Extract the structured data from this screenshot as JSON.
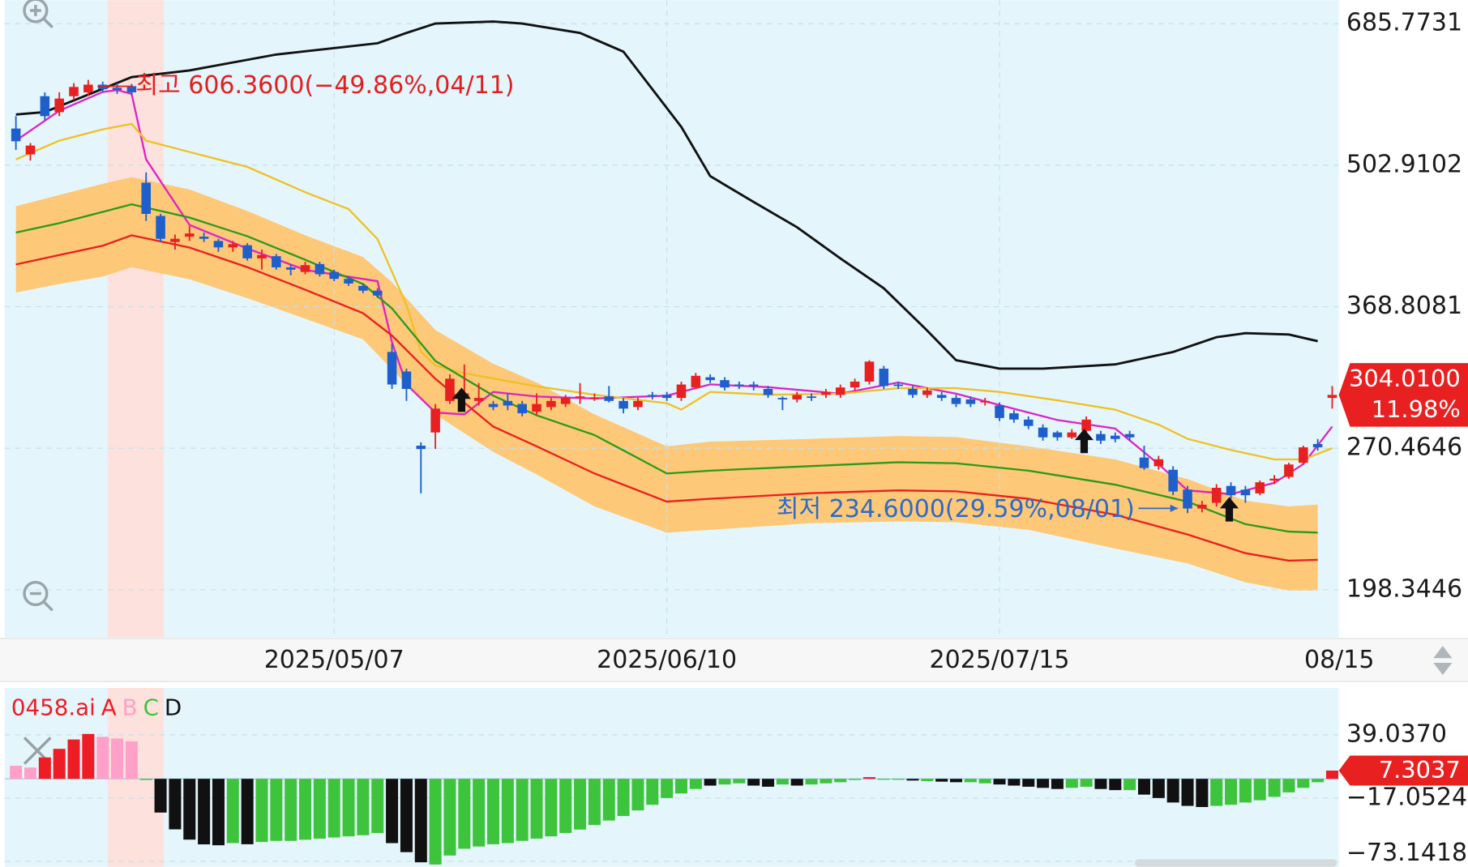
{
  "chart_data": [
    {
      "type": "candlestick",
      "log_scale": true,
      "grid": true,
      "up_color": "#e8201f",
      "down_color": "#1f5fcc",
      "categories": [
        null,
        null,
        null,
        null,
        null,
        null,
        null,
        null,
        null,
        null,
        null,
        null,
        null,
        null,
        null,
        null,
        null,
        null,
        null,
        null,
        null,
        null,
        "2025/05/07",
        null,
        null,
        null,
        null,
        null,
        null,
        null,
        null,
        null,
        null,
        null,
        null,
        null,
        null,
        null,
        null,
        null,
        null,
        null,
        null,
        null,
        null,
        "2025/06/10",
        null,
        null,
        null,
        null,
        null,
        null,
        null,
        null,
        null,
        null,
        null,
        null,
        null,
        null,
        null,
        null,
        null,
        null,
        null,
        null,
        null,
        null,
        "2025/07/15",
        null,
        null,
        null,
        null,
        null,
        null,
        null,
        null,
        null,
        null,
        null,
        null,
        null,
        null,
        null,
        null,
        null,
        null,
        null,
        null,
        null,
        null,
        "08/15"
      ],
      "open": [
        545,
        515,
        585,
        565,
        585,
        590,
        600,
        596,
        598,
        484,
        450,
        425,
        430,
        430,
        426,
        420,
        422,
        410,
        412,
        402,
        398,
        405,
        398,
        392,
        386,
        382,
        334,
        320,
        272,
        280,
        300,
        302,
        300,
        298,
        300,
        298,
        293,
        296,
        298,
        302,
        302,
        303,
        300,
        296,
        304,
        304,
        302,
        309,
        316,
        314,
        311,
        311,
        308,
        302,
        301,
        303,
        304,
        304,
        309,
        313,
        322,
        311,
        308,
        304,
        304,
        302,
        301,
        299,
        297,
        292,
        288,
        283,
        280,
        277,
        281,
        279,
        278,
        279,
        265,
        260,
        258,
        247,
        237,
        240,
        249,
        247,
        245,
        252,
        254,
        262,
        273,
        302
      ],
      "high": [
        560,
        528,
        590,
        590,
        602,
        606.36,
        604,
        602,
        601,
        495,
        452,
        432,
        440,
        434,
        428,
        426,
        424,
        418,
        414,
        405,
        407,
        407,
        400,
        394,
        388,
        384,
        340,
        322,
        274,
        298,
        318,
        325,
        312,
        300,
        305,
        300,
        305,
        302,
        304,
        312,
        305,
        310,
        302,
        302,
        306,
        306,
        313,
        319,
        318,
        316,
        313,
        313,
        310,
        303,
        306,
        305,
        308,
        311,
        315,
        328,
        324,
        313,
        310,
        309,
        306,
        304,
        303,
        302,
        299,
        294,
        290,
        285,
        281,
        282,
        290,
        281,
        280,
        281,
        272,
        266,
        260,
        249,
        241,
        250,
        251,
        249,
        252,
        255,
        262,
        272,
        276,
        310
      ],
      "low": [
        520,
        508,
        555,
        560,
        580,
        585,
        590,
        588,
        586,
        445,
        425,
        418,
        426,
        425,
        416,
        416,
        408,
        400,
        400,
        395,
        396,
        394,
        390,
        386,
        380,
        376,
        308,
        300,
        245,
        270,
        298,
        300,
        297,
        294,
        294,
        290,
        291,
        294,
        296,
        298,
        300,
        299,
        292,
        294,
        301,
        300,
        300,
        308,
        312,
        307,
        308,
        307,
        302,
        294,
        299,
        300,
        302,
        302,
        307,
        311,
        308,
        308,
        302,
        302,
        300,
        296,
        296,
        297,
        287,
        286,
        282,
        275,
        275,
        276,
        279,
        273,
        274,
        275,
        258,
        258,
        244,
        234.6,
        235,
        238,
        242,
        240,
        244,
        250,
        253,
        261,
        269,
        295
      ],
      "close": [
        530,
        525,
        560,
        582,
        597,
        600,
        594,
        593,
        590,
        452,
        428,
        428,
        433,
        428,
        420,
        423,
        410,
        413,
        402,
        400,
        404,
        396,
        392,
        388,
        382,
        378,
        311,
        308,
        270,
        295,
        315,
        305,
        302,
        296,
        297,
        292,
        298,
        300,
        302,
        303,
        302.4,
        300,
        295,
        300,
        303,
        302,
        311,
        317,
        314,
        309,
        310,
        310,
        304,
        301,
        304,
        302,
        306,
        309,
        313,
        327,
        310,
        310,
        304,
        307,
        302,
        298,
        298,
        300,
        289,
        288,
        284,
        277,
        277,
        280,
        288,
        275,
        276,
        277,
        259,
        264,
        246,
        237,
        239,
        248,
        244,
        244,
        251,
        253,
        261,
        271,
        271,
        304.01
      ],
      "lines": [
        {
          "color": "#111111",
          "x": [
            0,
            2,
            8,
            12,
            18,
            25,
            27,
            29,
            33,
            35,
            39,
            42,
            44,
            46,
            48,
            51,
            54,
            57,
            60,
            63,
            65,
            68,
            71,
            76,
            80,
            83,
            85,
            88,
            90
          ],
          "values": [
            562,
            565,
            610,
            619,
            641,
            657,
            672,
            686,
            689,
            686,
            672,
            645,
            594,
            547,
            491,
            464,
            439,
            410,
            384,
            350,
            328,
            322,
            322,
            325,
            334,
            345,
            348,
            347,
            342
          ]
        },
        {
          "color": "#e022c4",
          "x": [
            0,
            3,
            6,
            7,
            8,
            9,
            12,
            16,
            20,
            25,
            26,
            27,
            29,
            31,
            33,
            36,
            40,
            45,
            48,
            52,
            57,
            61,
            65,
            68,
            72,
            76,
            79,
            81,
            84,
            87,
            89,
            91
          ],
          "values": [
            530.7,
            566.7,
            590.5,
            592.9,
            588,
            509.4,
            441.2,
            419,
            399.8,
            390,
            341.2,
            311.1,
            292.5,
            291.3,
            306,
            302.9,
            301.6,
            303.5,
            311.1,
            309.2,
            304.8,
            312.4,
            304.8,
            297.3,
            287.7,
            282.4,
            261.2,
            246.6,
            244.6,
            250.7,
            261.2,
            283.6
          ]
        },
        {
          "color": "#f0c024",
          "x": [
            0,
            3,
            6,
            8,
            9,
            12,
            16,
            20,
            23,
            25,
            26,
            27,
            28,
            29,
            31,
            36,
            40,
            45,
            46,
            48,
            52,
            57,
            61,
            65,
            68,
            72,
            76,
            79,
            81,
            84,
            87,
            89,
            91
          ],
          "values": [
            509.4,
            530.7,
            544,
            550.6,
            530.7,
            517.7,
            501,
            474,
            456.8,
            427.7,
            398.1,
            370.4,
            334.3,
            324.2,
            318.8,
            309.8,
            304.1,
            298.5,
            294.3,
            306,
            304.1,
            304.8,
            308.5,
            308.5,
            306,
            300.4,
            294.3,
            284.8,
            276.1,
            269.4,
            263.9,
            263.9,
            270.5
          ]
        },
        {
          "color": "#2a9a1a",
          "x": [
            0,
            3,
            6,
            8,
            12,
            16,
            20,
            24,
            26,
            29,
            33,
            36,
            40,
            45,
            48,
            55,
            61,
            65,
            70,
            76,
            81,
            85,
            88,
            90
          ],
          "values": [
            433.9,
            443,
            454,
            461.6,
            448.4,
            430.4,
            408.8,
            387.6,
            367.4,
            327.5,
            303.5,
            290.7,
            278.4,
            255.9,
            257.5,
            260.1,
            262.3,
            261.7,
            257.5,
            249.7,
            240.6,
            229,
            225.3,
            224.8
          ]
        },
        {
          "color": "#e8201c",
          "x": [
            0,
            3,
            6,
            8,
            12,
            16,
            20,
            24,
            26,
            29,
            33,
            36,
            40,
            45,
            48,
            55,
            61,
            65,
            70,
            76,
            81,
            85,
            88,
            90
          ],
          "values": [
            404.6,
            413,
            421.6,
            431.3,
            419.9,
            402.2,
            382.8,
            363.6,
            346.2,
            314.9,
            283.6,
            271.6,
            255.9,
            240.6,
            242.1,
            245.1,
            246.6,
            246.1,
            242.1,
            233.8,
            223.9,
            214.9,
            211.4,
            211.8
          ]
        }
      ],
      "band": {
        "color": "#fdc878",
        "x": [
          0,
          3,
          6,
          8,
          12,
          16,
          20,
          24,
          26,
          29,
          33,
          36,
          40,
          45,
          48,
          55,
          61,
          65,
          70,
          76,
          81,
          85,
          88,
          90
        ],
        "upper": [
          459.7,
          471.1,
          482.8,
          489.9,
          476.9,
          454.9,
          431.3,
          411.3,
          389.2,
          350.4,
          325.5,
          312.4,
          291.3,
          271.6,
          274.4,
          276.1,
          277.8,
          277.2,
          271.6,
          263.9,
          252.8,
          241.1,
          238.1,
          239.1
        ],
        "lower": [
          380.5,
          387.6,
          394,
          402.2,
          391.6,
          375.8,
          359.2,
          343.3,
          321.5,
          291.3,
          268.3,
          255.4,
          238.1,
          224.8,
          226.2,
          229.5,
          230.4,
          230,
          226.2,
          217.1,
          210.1,
          201.6,
          198,
          198
        ]
      },
      "ylim": [
        179,
        722
      ],
      "yticks": [
        685.7731,
        502.9102,
        368.8081,
        270.4646,
        198.3446
      ],
      "annotations": {
        "high": "최고 606.3600(−49.86%,04/11)",
        "low": "최저 234.6000(29.59%,08/01)"
      },
      "current": {
        "price": "304.0100",
        "change": "11.98%"
      }
    },
    {
      "type": "bar",
      "legend_title": "0458.ai",
      "series": [
        {
          "name": "A",
          "color": "#ee1c24"
        },
        {
          "name": "B",
          "color": "#ffa0c8"
        },
        {
          "name": "C",
          "color": "#3ec43c"
        },
        {
          "name": "D",
          "color": "#111111"
        }
      ],
      "values": [
        11.6,
        10,
        19,
        26.6,
        34.9,
        39.8,
        37.3,
        35.7,
        33.2,
        -1,
        -29.9,
        -44.8,
        -53.9,
        -58.1,
        -58.9,
        -57,
        -58,
        -56,
        -55,
        -55,
        -54,
        -53,
        -52,
        -51,
        -50,
        -48,
        -57,
        -65,
        -74,
        -76,
        -68,
        -62,
        -60,
        -58,
        -57,
        -55,
        -53,
        -51,
        -48,
        -45,
        -41,
        -37,
        -33,
        -28,
        -23,
        -17,
        -13,
        -9,
        -6,
        -5,
        -4,
        -6,
        -7,
        -5,
        -6,
        -5,
        -4,
        -3,
        -1,
        1.5,
        -0.5,
        -0.5,
        -1.5,
        -2,
        -2.5,
        -3,
        -3,
        -4,
        -5,
        -6,
        -7,
        -8,
        -9,
        -8,
        -7,
        -9,
        -10,
        -10,
        -14,
        -17,
        -21,
        -24,
        -25,
        -24,
        -23,
        -21,
        -19,
        -16,
        -12,
        -8,
        -3,
        7.3037
      ],
      "groups": [
        "B",
        "B",
        "A",
        "A",
        "A",
        "A",
        "B",
        "B",
        "B",
        "C",
        "D",
        "D",
        "D",
        "D",
        "D",
        "C",
        "D",
        "C",
        "C",
        "C",
        "C",
        "C",
        "C",
        "C",
        "C",
        "C",
        "D",
        "D",
        "D",
        "C",
        "C",
        "C",
        "C",
        "C",
        "C",
        "C",
        "C",
        "C",
        "C",
        "C",
        "C",
        "C",
        "C",
        "C",
        "C",
        "C",
        "C",
        "C",
        "D",
        "C",
        "C",
        "D",
        "D",
        "C",
        "D",
        "C",
        "C",
        "C",
        "C",
        "A",
        "C",
        "C",
        "D",
        "C",
        "D",
        "D",
        "C",
        "C",
        "D",
        "D",
        "D",
        "D",
        "D",
        "C",
        "C",
        "D",
        "D",
        "C",
        "D",
        "D",
        "D",
        "D",
        "D",
        "C",
        "C",
        "C",
        "C",
        "C",
        "C",
        "C",
        "C",
        "A"
      ],
      "ylim": [
        -78,
        80.5
      ],
      "yticks": [
        {
          "value": 39.037,
          "label": "39.0370"
        },
        {
          "value": -17.0524,
          "label": "−17.0524"
        },
        {
          "value": -73.1418,
          "label": "−73.1418"
        }
      ],
      "current": "7.3037"
    }
  ]
}
